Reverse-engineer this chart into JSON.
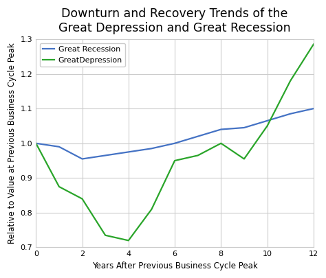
{
  "title": "Downturn and Recovery Trends of the\nGreat Depression and Great Recession",
  "xlabel": "Years After Previous Business Cycle Peak",
  "ylabel": "Relative to Value at Previous Business Cycle Peak",
  "great_recession_x": [
    0,
    1,
    2,
    3,
    4,
    5,
    6,
    7,
    8,
    9,
    10,
    11,
    12
  ],
  "great_recession_y": [
    1.0,
    0.99,
    0.955,
    0.965,
    0.975,
    0.985,
    1.0,
    1.02,
    1.04,
    1.045,
    1.065,
    1.085,
    1.1
  ],
  "great_depression_x": [
    0,
    1,
    2,
    3,
    4,
    5,
    6,
    7,
    8,
    9,
    10,
    11,
    12
  ],
  "great_depression_y": [
    1.0,
    0.875,
    0.84,
    0.735,
    0.72,
    0.81,
    0.95,
    0.965,
    1.0,
    0.955,
    1.05,
    1.18,
    1.285
  ],
  "recession_color": "#4472c4",
  "depression_color": "#2aa52a",
  "recession_label": "Great Recession",
  "depression_label": "GreatDepression",
  "xlim": [
    0,
    12
  ],
  "ylim": [
    0.7,
    1.3
  ],
  "yticks": [
    0.7,
    0.8,
    0.9,
    1.0,
    1.1,
    1.2,
    1.3
  ],
  "xticks": [
    0,
    2,
    4,
    6,
    8,
    10,
    12
  ],
  "grid": true,
  "background_color": "#ffffff",
  "grid_color": "#cccccc",
  "title_fontsize": 12.5,
  "label_fontsize": 8.5,
  "tick_fontsize": 8,
  "legend_fontsize": 8
}
